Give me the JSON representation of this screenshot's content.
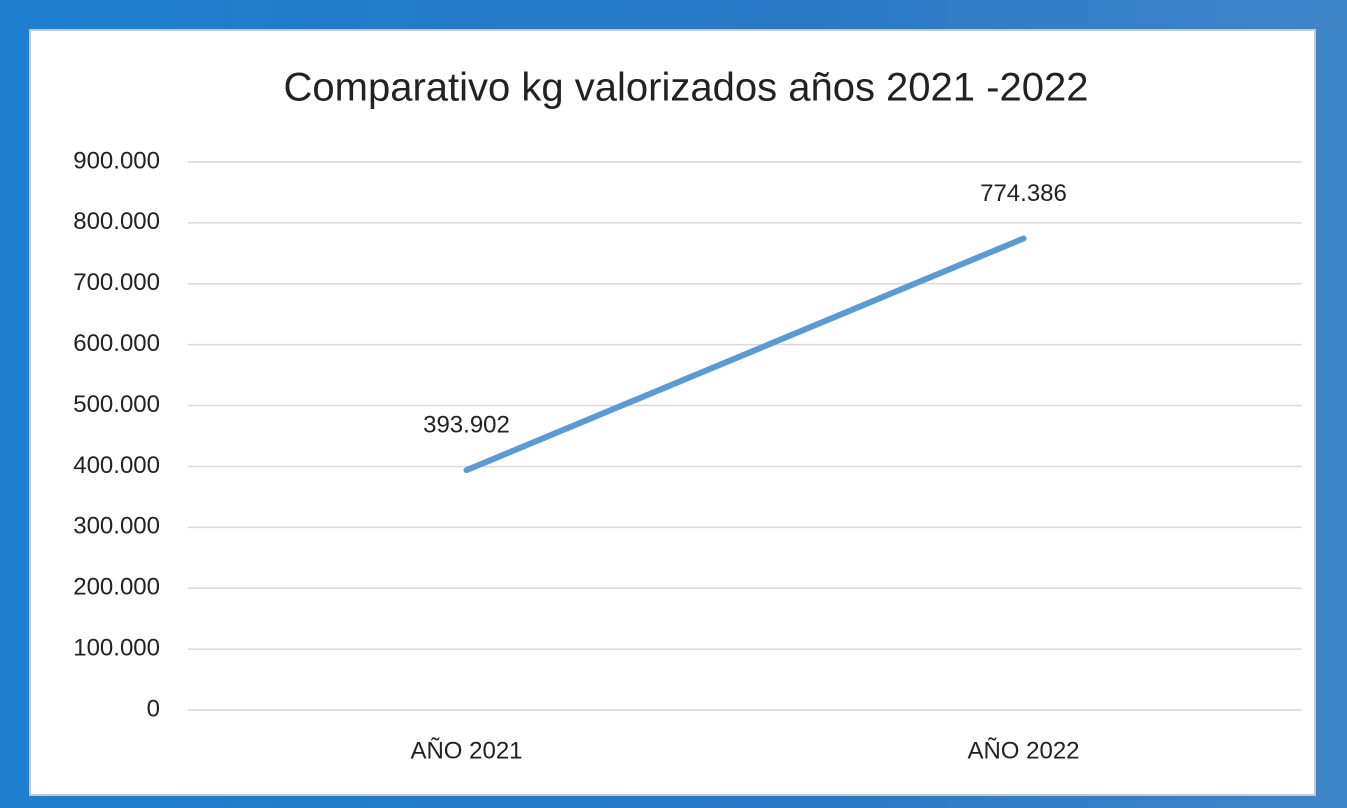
{
  "chart_data": {
    "type": "line",
    "title": "Comparativo kg valorizados años 2021 -2022",
    "categories": [
      "AÑO 2021",
      "AÑO 2022"
    ],
    "series": [
      {
        "color": "#5b9bd5",
        "values": [
          393902,
          774386
        ],
        "value_labels": [
          "393.902",
          "774.386"
        ]
      }
    ],
    "ylim": [
      0,
      900000
    ],
    "yticks": [
      0,
      {
        "value": 100000,
        "label": "100.000"
      },
      {
        "value": 200000,
        "label": "200.000"
      },
      {
        "value": 300000,
        "label": "300.000"
      },
      {
        "value": 400000,
        "label": "400.000"
      },
      {
        "value": 500000,
        "label": "500.000"
      },
      {
        "value": 600000,
        "label": "600.000"
      },
      {
        "value": 700000,
        "label": "700.000"
      },
      {
        "value": 800000,
        "label": "800.000"
      },
      {
        "value": 900000,
        "label": "900.000"
      }
    ],
    "grid": true
  }
}
